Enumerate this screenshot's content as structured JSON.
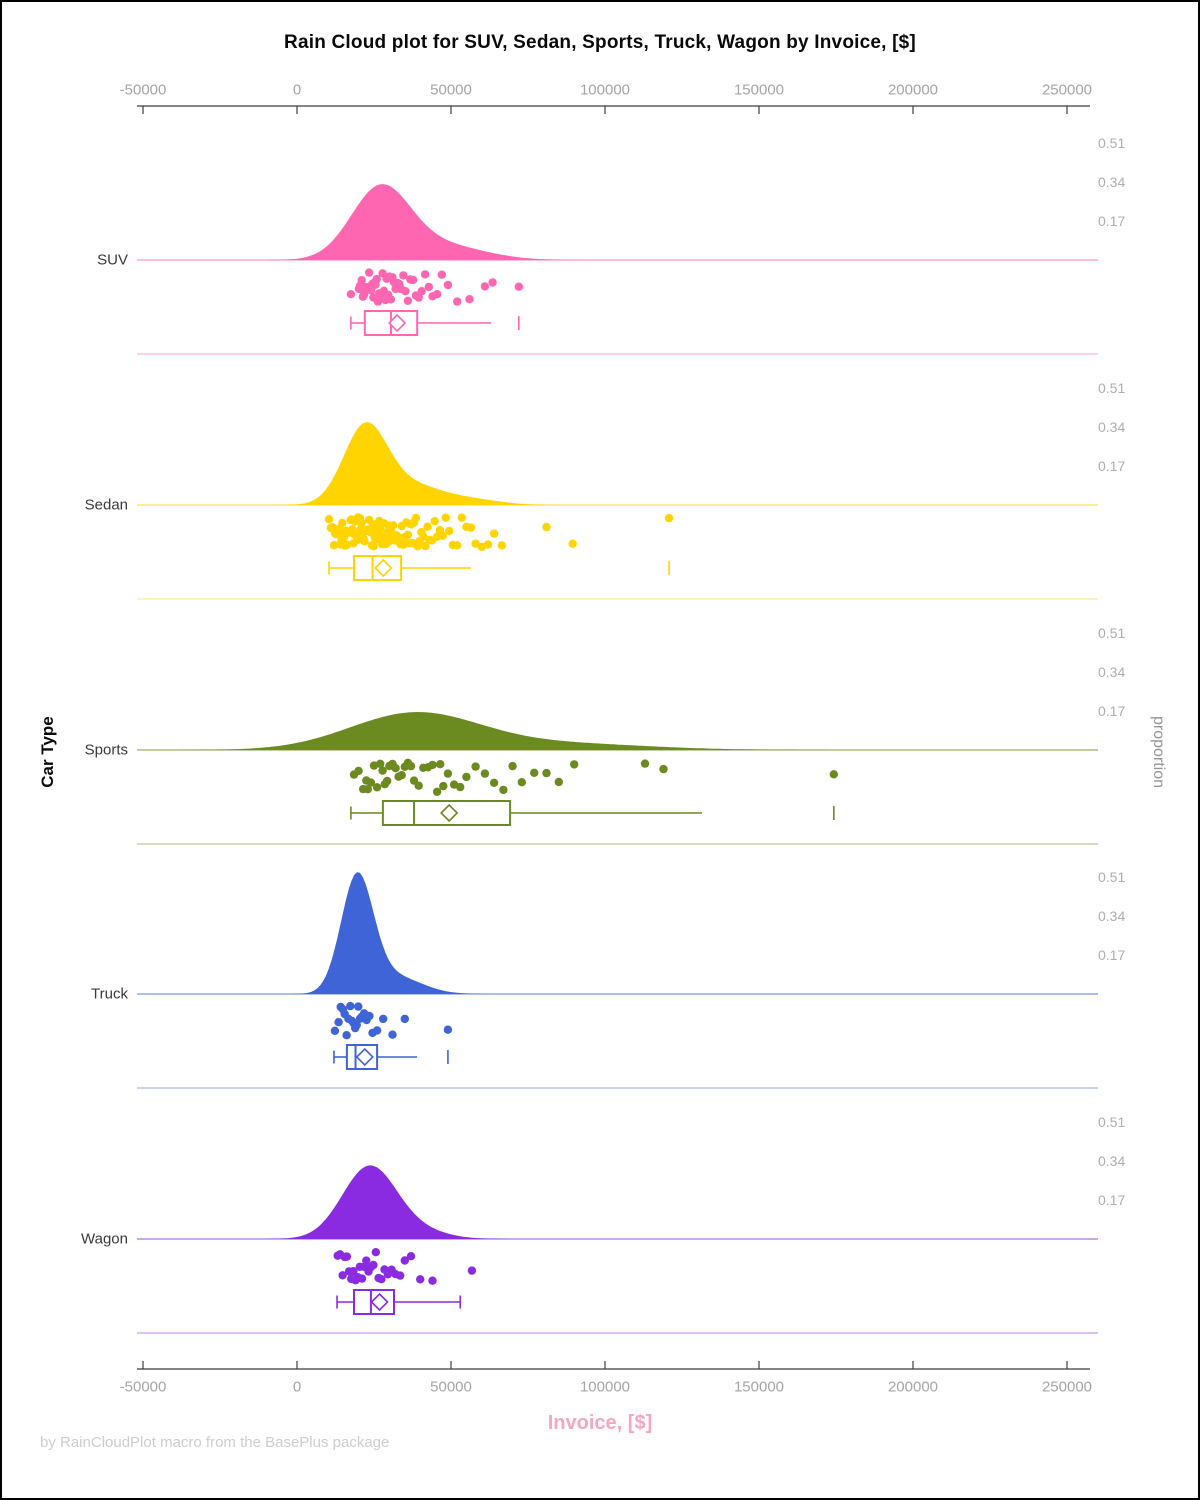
{
  "chart_data": {
    "type": "raincloud",
    "title": "Rain Cloud plot for SUV, Sedan, Sports, Truck, Wagon by Invoice, [$]",
    "xlabel": "Invoice, [$]",
    "ylabel": "Car Type",
    "ylabel_right": "proportion",
    "footer": "by RainCloudPlot macro from the BasePlus package",
    "x_axis": {
      "min": -50000,
      "max": 250000,
      "ticks": [
        -50000,
        0,
        50000,
        100000,
        150000,
        200000,
        250000
      ],
      "tick_labels": [
        "-50000",
        "0",
        "50000",
        "100000",
        "150000",
        "200000",
        "250000"
      ]
    },
    "proportion_ticks": [
      0.51,
      0.34,
      0.17
    ],
    "categories": [
      {
        "name": "SUV",
        "color": "#FF66B2",
        "density": {
          "peak_proportion": 0.33,
          "components": [
            {
              "mu": 27000,
              "s": 9500,
              "w": 1
            },
            {
              "mu": 46000,
              "s": 14000,
              "w": 0.22
            }
          ]
        },
        "points": [
          17500,
          20100,
          20500,
          21000,
          21400,
          21800,
          22300,
          22600,
          23000,
          23400,
          23700,
          24100,
          24400,
          24800,
          25200,
          25500,
          25900,
          26300,
          26700,
          27000,
          27400,
          27800,
          28200,
          28700,
          29100,
          29600,
          30000,
          30500,
          31000,
          31500,
          32000,
          32600,
          33200,
          33800,
          34500,
          35200,
          36000,
          36800,
          37700,
          38600,
          39500,
          40500,
          41600,
          42800,
          44000,
          45500,
          47000,
          49000,
          52000,
          56000,
          61000,
          63500,
          72000
        ],
        "box": {
          "whisker_low": 17500,
          "q1": 22000,
          "median": 30500,
          "q3": 39000,
          "whisker_high": 63000,
          "mean": 32500,
          "outliers": [
            72000
          ],
          "right_cap": false
        }
      },
      {
        "name": "Sedan",
        "color": "#FFD400",
        "density": {
          "peak_proportion": 0.36,
          "components": [
            {
              "mu": 22000,
              "s": 7000,
              "w": 1
            },
            {
              "mu": 36000,
              "s": 11000,
              "w": 0.28
            },
            {
              "mu": 58000,
              "s": 9000,
              "w": 0.06
            }
          ]
        },
        "points": [
          10400,
          11000,
          11500,
          12000,
          12300,
          12600,
          12900,
          13200,
          13500,
          13800,
          14100,
          14400,
          14700,
          15000,
          15300,
          15600,
          15900,
          16200,
          16500,
          16800,
          17100,
          17400,
          17700,
          18000,
          18300,
          18600,
          18900,
          19200,
          19500,
          19800,
          20100,
          20400,
          20700,
          21000,
          21300,
          21600,
          21900,
          22200,
          22500,
          22800,
          23100,
          23400,
          23700,
          24000,
          24300,
          24600,
          24900,
          25200,
          25500,
          25800,
          26100,
          26400,
          26700,
          27000,
          27300,
          27600,
          27900,
          28200,
          28500,
          28800,
          29100,
          29400,
          29700,
          30000,
          30400,
          30800,
          31200,
          31600,
          32000,
          32400,
          32800,
          33200,
          33600,
          34000,
          34500,
          35000,
          35500,
          36000,
          36500,
          37000,
          37500,
          38000,
          38600,
          39200,
          39800,
          40400,
          41000,
          41700,
          42400,
          43100,
          43900,
          44700,
          45500,
          46400,
          47300,
          48300,
          49400,
          50600,
          52000,
          53500,
          55000,
          56500,
          58000,
          60000,
          62000,
          64000,
          66500,
          81000,
          89500,
          120800
        ],
        "box": {
          "whisker_low": 10400,
          "q1": 18500,
          "median": 24500,
          "q3": 33800,
          "whisker_high": 56500,
          "mean": 28000,
          "outliers": [
            120800
          ],
          "right_cap": false
        }
      },
      {
        "name": "Sports",
        "color": "#6B8A1F",
        "density": {
          "peak_proportion": 0.165,
          "components": [
            {
              "mu": 38000,
              "s": 21000,
              "w": 1
            },
            {
              "mu": 85000,
              "s": 28000,
              "w": 0.18
            }
          ]
        },
        "points": [
          18500,
          20000,
          21500,
          22500,
          23000,
          24000,
          25000,
          26000,
          27000,
          27800,
          28500,
          29300,
          30000,
          31000,
          32000,
          33000,
          34000,
          35000,
          36000,
          37000,
          38000,
          39500,
          41000,
          42500,
          44000,
          45500,
          46500,
          47500,
          49000,
          51000,
          53000,
          55000,
          58000,
          61000,
          64000,
          67000,
          70000,
          73000,
          77000,
          81000,
          85000,
          90000,
          113000,
          119000,
          174300
        ],
        "box": {
          "whisker_low": 17500,
          "q1": 27900,
          "median": 38000,
          "q3": 69200,
          "whisker_high": 131500,
          "mean": 49400,
          "outliers": [
            174300
          ],
          "right_cap": false
        }
      },
      {
        "name": "Truck",
        "color": "#3E64D7",
        "density": {
          "peak_proportion": 0.53,
          "components": [
            {
              "mu": 19500,
              "s": 5200,
              "w": 1
            },
            {
              "mu": 31000,
              "s": 9000,
              "w": 0.16
            }
          ]
        },
        "points": [
          12300,
          13500,
          14200,
          14900,
          15500,
          16100,
          16700,
          17300,
          17900,
          18400,
          18900,
          19400,
          19900,
          20500,
          21100,
          21800,
          22600,
          23500,
          24500,
          26000,
          28000,
          31000,
          35000,
          49000
        ],
        "box": {
          "whisker_low": 12000,
          "q1": 16200,
          "median": 19000,
          "q3": 26000,
          "whisker_high": 39000,
          "mean": 22000,
          "outliers": [
            49000
          ],
          "right_cap": false
        }
      },
      {
        "name": "Wagon",
        "color": "#8A2BE2",
        "density": {
          "peak_proportion": 0.32,
          "components": [
            {
              "mu": 23500,
              "s": 8800,
              "w": 1
            },
            {
              "mu": 40000,
              "s": 9000,
              "w": 0.1
            }
          ]
        },
        "points": [
          13200,
          14000,
          14800,
          15500,
          16200,
          16900,
          17600,
          18300,
          19000,
          19700,
          20400,
          21100,
          21800,
          22500,
          23200,
          24000,
          24800,
          25600,
          26500,
          27400,
          28400,
          29500,
          30700,
          32000,
          33500,
          35000,
          37000,
          40000,
          44000,
          56800
        ],
        "box": {
          "whisker_low": 13000,
          "q1": 18500,
          "median": 24000,
          "q3": 31500,
          "whisker_high": 53000,
          "mean": 26800,
          "outliers": [],
          "right_cap": true
        }
      }
    ]
  }
}
